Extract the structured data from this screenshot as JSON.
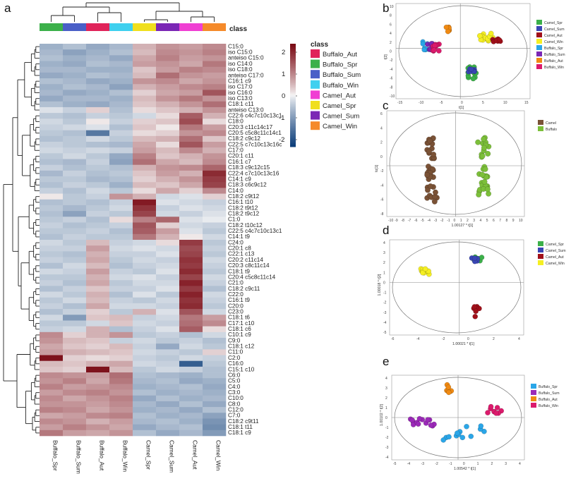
{
  "panel_labels": {
    "a": "a",
    "b": "b",
    "c": "c",
    "d": "d",
    "e": "e"
  },
  "heatmap": {
    "columns": [
      "Buffalo_Spr",
      "Buffalo_Sum",
      "Buffalo_Aut",
      "Buffalo_Win",
      "Camel_Spr",
      "Camel_Sum",
      "Camel_Aut",
      "Camel_Win"
    ],
    "class_colors": [
      "#3cb04a",
      "#4a5fc7",
      "#e0245a",
      "#3fd0ef",
      "#f0df1e",
      "#7b27b5",
      "#f03fd3",
      "#f58a2a"
    ],
    "class_header": "class",
    "rows": [
      "C15:0",
      "iso C15:0",
      "anteiso C15:0",
      "iso C14:0",
      "iso C18:0",
      "anteiso C17:0",
      "C16:1 c9",
      "iso C17:0",
      "iso C16:0",
      "iso C13:0",
      "C18:1 c11",
      "anteiso C13:0",
      "C22:6 c4c7c10c13c1",
      "C18:0",
      "C20:3 c11c14c17",
      "C20:5 c5c8c11c14c1",
      "C18:2 c9c12",
      "C22:5 c7c10c13c16c",
      "C17:0",
      "C20:1 c11",
      "C16:1 c7",
      "C18:3 c9c12c15",
      "C22:4 c7c10c13c16",
      "C14:1 c9",
      "C18:3 c6c9c12",
      "C14:0",
      "C18:2 c9t12",
      "C16:1 t10",
      "C18:2 t9t12",
      "C18:2 t9c12",
      "C1:0",
      "C18:2 t10c12",
      "C22:5 c4c7c10c13c1",
      "C14:1 t9",
      "C24:0",
      "C20:1 c8",
      "C22:1 c13",
      "C20:2 c11c14",
      "C20:3 c8c11c14",
      "C18:1 t9",
      "C20:4 c5c8c11c14",
      "C21:0",
      "C18:2 c9c11",
      "C22:0",
      "C16:1 t9",
      "C20:0",
      "C23:0",
      "C18:1 t6",
      "C17:1 c10",
      "C18:1 c6",
      "C10:1 c9",
      "C9:0",
      "C18:1 c12",
      "C11:0",
      "C2:0",
      "C16:0",
      "C15:1 c10",
      "C6:0",
      "C5:0",
      "C4:0",
      "C3:0",
      "C10:0",
      "C8:0",
      "C12:0",
      "C7:0",
      "C18:2 c9t11",
      "C18:1 t11",
      "C18:1 c9"
    ],
    "values": [
      [
        -0.8,
        -0.6,
        -0.9,
        -0.7,
        0.6,
        0.9,
        0.8,
        1.0
      ],
      [
        -0.7,
        -1.0,
        -0.8,
        -0.6,
        0.5,
        1.0,
        0.9,
        1.1
      ],
      [
        -0.6,
        -0.8,
        -0.7,
        -0.9,
        0.7,
        1.1,
        0.8,
        0.9
      ],
      [
        -0.8,
        -0.9,
        -0.6,
        -0.7,
        0.8,
        0.9,
        0.7,
        1.2
      ],
      [
        -0.7,
        -0.7,
        -0.8,
        -0.8,
        0.4,
        0.8,
        1.1,
        1.0
      ],
      [
        -0.9,
        -0.8,
        -0.6,
        -0.7,
        0.5,
        1.3,
        0.9,
        0.8
      ],
      [
        -0.6,
        -0.7,
        -0.9,
        -0.8,
        0.9,
        1.0,
        0.7,
        0.9
      ],
      [
        -0.8,
        -0.6,
        -0.7,
        -1.0,
        0.6,
        0.8,
        1.0,
        1.1
      ],
      [
        -0.7,
        -0.9,
        -0.8,
        -0.6,
        0.3,
        0.7,
        0.8,
        1.6
      ],
      [
        -0.9,
        -0.7,
        -0.7,
        -0.8,
        0.5,
        0.9,
        1.2,
        0.9
      ],
      [
        -0.6,
        -0.8,
        -0.9,
        -0.7,
        0.4,
        0.6,
        0.9,
        1.3
      ],
      [
        -0.2,
        -0.4,
        0.3,
        -0.6,
        0.2,
        0.4,
        0.6,
        0.9
      ],
      [
        -0.5,
        -0.6,
        -0.4,
        -0.5,
        -0.3,
        0.2,
        1.5,
        0.6
      ],
      [
        -0.3,
        -0.5,
        0.1,
        -0.4,
        0.3,
        0.4,
        1.7,
        0.2
      ],
      [
        -0.4,
        -0.3,
        -0.2,
        -0.6,
        0.4,
        0.1,
        1.2,
        0.8
      ],
      [
        -0.5,
        -0.6,
        -1.6,
        -0.4,
        0.2,
        0.3,
        0.9,
        1.0
      ],
      [
        -0.6,
        -0.5,
        -0.3,
        -0.5,
        0.5,
        0.6,
        1.3,
        0.4
      ],
      [
        -0.4,
        -0.5,
        -0.6,
        -0.7,
        0.7,
        0.2,
        1.6,
        0.8
      ],
      [
        -0.3,
        -0.4,
        -0.3,
        -0.4,
        0.8,
        0.5,
        1.0,
        0.6
      ],
      [
        -0.5,
        -0.3,
        -0.5,
        -0.9,
        1.1,
        0.4,
        0.6,
        0.9
      ],
      [
        -0.6,
        -0.7,
        -0.4,
        -1.0,
        1.3,
        0.7,
        0.5,
        1.0
      ],
      [
        -0.4,
        -0.6,
        -0.5,
        -0.6,
        0.6,
        0.9,
        1.0,
        1.4
      ],
      [
        -0.7,
        -0.4,
        -0.6,
        -0.5,
        0.4,
        0.8,
        0.6,
        2.1
      ],
      [
        -0.5,
        -0.5,
        -0.7,
        -0.6,
        0.3,
        0.6,
        0.9,
        1.9
      ],
      [
        -0.6,
        -0.4,
        -0.5,
        -0.8,
        0.5,
        0.4,
        0.7,
        1.8
      ],
      [
        -0.4,
        -0.6,
        -0.3,
        -0.5,
        0.2,
        0.7,
        0.3,
        1.0
      ],
      [
        0.1,
        -0.5,
        -0.4,
        0.9,
        0.6,
        -0.3,
        -0.2,
        0.3
      ],
      [
        -0.6,
        -0.5,
        -0.6,
        -0.4,
        2.3,
        -0.2,
        -0.3,
        -0.4
      ],
      [
        -0.5,
        -0.7,
        -0.5,
        -0.3,
        2.0,
        -0.4,
        -0.2,
        -0.3
      ],
      [
        -0.6,
        -1.0,
        -0.4,
        -0.5,
        1.8,
        -0.3,
        -0.4,
        -0.2
      ],
      [
        -0.5,
        -0.4,
        -0.6,
        0.2,
        1.1,
        1.4,
        -0.2,
        -0.1
      ],
      [
        -0.4,
        -0.6,
        -0.5,
        -0.4,
        1.6,
        0.3,
        -0.3,
        -0.4
      ],
      [
        -0.5,
        -0.5,
        -0.4,
        -0.6,
        1.5,
        0.8,
        -0.2,
        -0.5
      ],
      [
        -0.6,
        -0.4,
        -0.5,
        -0.5,
        1.2,
        0.6,
        0.1,
        -0.3
      ],
      [
        -0.3,
        -0.5,
        0.5,
        -0.4,
        -0.3,
        0.2,
        1.9,
        -0.5
      ],
      [
        -0.4,
        -0.4,
        0.8,
        -0.3,
        -0.2,
        -0.3,
        1.7,
        -0.4
      ],
      [
        -0.5,
        -0.6,
        0.6,
        -0.4,
        -0.4,
        -0.2,
        1.8,
        -0.5
      ],
      [
        -0.4,
        -0.5,
        0.7,
        -0.5,
        -0.3,
        -0.4,
        2.0,
        -0.3
      ],
      [
        -0.6,
        -0.3,
        0.5,
        -0.6,
        -0.4,
        -0.3,
        1.9,
        -0.4
      ],
      [
        -0.3,
        -0.4,
        0.8,
        -0.4,
        -0.5,
        -0.2,
        2.1,
        -0.5
      ],
      [
        -0.5,
        -0.5,
        0.6,
        -0.3,
        -0.2,
        -0.4,
        1.8,
        -0.3
      ],
      [
        -0.4,
        -0.6,
        0.7,
        -0.5,
        -0.3,
        -0.3,
        2.2,
        -0.4
      ],
      [
        -0.6,
        -0.4,
        0.4,
        -0.4,
        -0.4,
        -0.2,
        1.9,
        -0.6
      ],
      [
        -0.3,
        -0.5,
        0.6,
        -0.6,
        -0.2,
        -0.5,
        2.2,
        -0.3
      ],
      [
        -0.5,
        -0.3,
        0.5,
        -0.4,
        -0.5,
        -0.3,
        2.0,
        -0.4
      ],
      [
        -0.4,
        -0.6,
        0.7,
        -0.3,
        -0.3,
        -0.4,
        2.1,
        -0.5
      ],
      [
        -0.6,
        -0.4,
        0.3,
        -0.5,
        0.6,
        -0.2,
        1.6,
        -0.3
      ],
      [
        -0.3,
        -1.1,
        0.4,
        0.5,
        -0.4,
        -0.3,
        1.2,
        0.8
      ],
      [
        -0.5,
        -0.5,
        -0.3,
        0.4,
        -0.3,
        -0.4,
        1.3,
        1.0
      ],
      [
        -0.4,
        -0.3,
        0.6,
        -0.6,
        -0.4,
        -0.2,
        1.5,
        0.2
      ],
      [
        1.0,
        0.3,
        0.6,
        0.9,
        -0.5,
        -0.4,
        -0.6,
        -0.3
      ],
      [
        0.9,
        0.5,
        0.4,
        -0.4,
        -0.3,
        -0.5,
        -0.4,
        -0.6
      ],
      [
        0.7,
        0.4,
        0.3,
        0.5,
        -0.4,
        -0.9,
        -0.3,
        -0.5
      ],
      [
        0.8,
        0.6,
        0.5,
        0.4,
        -0.3,
        -0.4,
        -0.5,
        0.3
      ],
      [
        2.4,
        0.3,
        0.2,
        0.3,
        -0.4,
        -0.5,
        -0.3,
        -0.4
      ],
      [
        0.5,
        0.4,
        0.6,
        0.7,
        -0.3,
        -0.4,
        -2.0,
        -0.5
      ],
      [
        0.4,
        0.3,
        2.4,
        0.5,
        -0.5,
        -0.3,
        -0.4,
        -0.6
      ],
      [
        1.0,
        0.9,
        0.8,
        1.3,
        -0.6,
        -0.7,
        -0.8,
        -0.6
      ],
      [
        0.9,
        1.1,
        0.7,
        1.2,
        -0.7,
        -0.6,
        -0.9,
        -0.8
      ],
      [
        1.1,
        0.8,
        0.9,
        1.0,
        -0.8,
        -0.7,
        -0.6,
        -0.9
      ],
      [
        0.8,
        1.0,
        1.1,
        0.9,
        -0.6,
        -0.8,
        -0.7,
        -0.8
      ],
      [
        1.0,
        0.7,
        0.9,
        1.1,
        -0.9,
        -0.6,
        -0.8,
        -0.7
      ],
      [
        0.9,
        0.9,
        0.8,
        1.0,
        -0.7,
        -0.9,
        -0.6,
        -0.9
      ],
      [
        1.1,
        1.0,
        0.7,
        0.9,
        -0.8,
        -0.7,
        -0.9,
        -0.6
      ],
      [
        0.7,
        0.8,
        1.0,
        1.1,
        -0.6,
        -0.8,
        -0.7,
        -1.0
      ],
      [
        1.0,
        0.9,
        0.6,
        0.8,
        -0.7,
        -0.6,
        -0.8,
        -1.2
      ],
      [
        0.8,
        1.1,
        0.9,
        0.7,
        -0.9,
        -0.7,
        -0.6,
        -1.3
      ],
      [
        1.2,
        0.8,
        0.7,
        0.9,
        -0.6,
        -0.9,
        -0.7,
        -1.1
      ]
    ],
    "colorbar": {
      "ticks": [
        "2",
        "1",
        "0",
        "-1",
        "-2"
      ],
      "colors": [
        "#7a0a14",
        "#f7f7f7",
        "#0d3e7a"
      ]
    },
    "legend": {
      "title": "class",
      "items": [
        {
          "label": "Buffalo_Aut",
          "color": "#e0245a"
        },
        {
          "label": "Buffalo_Spr",
          "color": "#3cb04a"
        },
        {
          "label": "Buffalo_Sum",
          "color": "#4a5fc7"
        },
        {
          "label": "Buffalo_Win",
          "color": "#3fd0ef"
        },
        {
          "label": "Camel_Aut",
          "color": "#f03fd3"
        },
        {
          "label": "Camel_Spr",
          "color": "#f0df1e"
        },
        {
          "label": "Camel_Sum",
          "color": "#7b27b5"
        },
        {
          "label": "Camel_Win",
          "color": "#f58a2a"
        }
      ]
    }
  },
  "scatter_b": {
    "xlabel": "t[1]",
    "ylabel": "t[2]",
    "xticks": [
      "-15",
      "-10",
      "-5",
      "0",
      "5",
      "10",
      "15"
    ],
    "yticks": [
      "10",
      "8",
      "6",
      "4",
      "2",
      "0",
      "-2",
      "-4",
      "-6",
      "-8",
      "-10"
    ],
    "legend": [
      {
        "label": "Camel_Spr",
        "color": "#3cb04a"
      },
      {
        "label": "Camel_Sum",
        "color": "#3a46b5"
      },
      {
        "label": "Camel_Aut",
        "color": "#a0101a"
      },
      {
        "label": "Camel_Win",
        "color": "#f5ef22"
      },
      {
        "label": "Buffalo_Spr",
        "color": "#2aa6e8"
      },
      {
        "label": "Buffalo_Sum",
        "color": "#7b27b5"
      },
      {
        "label": "Buffalo_Aut",
        "color": "#f08a12"
      },
      {
        "label": "Buffalo_Win",
        "color": "#dc1a6c"
      }
    ]
  },
  "scatter_c": {
    "xlabel": "1.00127 * t[1]",
    "ylabel": "to[1]",
    "xticks": [
      "-10",
      "-9",
      "-8",
      "-7",
      "-6",
      "-5",
      "-4",
      "-3",
      "-2",
      "-1",
      "0",
      "1",
      "2",
      "3",
      "4",
      "5",
      "6",
      "7",
      "8",
      "9",
      "10"
    ],
    "yticks": [
      "6",
      "4",
      "2",
      "0",
      "-2",
      "-4",
      "-6",
      "-8"
    ],
    "legend": [
      {
        "label": "Camel",
        "color": "#7a5236"
      },
      {
        "label": "Buffalo",
        "color": "#7cbf3a"
      }
    ]
  },
  "scatter_d": {
    "xlabel": "1.00021 * t[1]",
    "ylabel": "1.00018 * t[2]",
    "xticks": [
      "-6",
      "-4",
      "-2",
      "0",
      "2",
      "4"
    ],
    "yticks": [
      "4",
      "3",
      "2",
      "1",
      "0",
      "-1",
      "-2",
      "-3",
      "-4",
      "-5"
    ],
    "legend": [
      {
        "label": "Camel_Spr",
        "color": "#3cb04a"
      },
      {
        "label": "Camel_Sum",
        "color": "#3a46b5"
      },
      {
        "label": "Camel_Aut",
        "color": "#a0101a"
      },
      {
        "label": "Camel_Win",
        "color": "#f5ef22"
      }
    ]
  },
  "scatter_e": {
    "xlabel": "1.00542 * t[1]",
    "ylabel": "1.00102 * t[2]",
    "xticks": [
      "-5",
      "-4",
      "-3",
      "-2",
      "-1",
      "0",
      "1",
      "2",
      "3",
      "4"
    ],
    "yticks": [
      "4",
      "3",
      "2",
      "1",
      "0",
      "-1",
      "-2",
      "-3",
      "-4"
    ],
    "legend": [
      {
        "label": "Buffalo_Spr",
        "color": "#2aa6e8"
      },
      {
        "label": "Buffalo_Sum",
        "color": "#9b2ab8"
      },
      {
        "label": "Buffalo_Aut",
        "color": "#f08a12"
      },
      {
        "label": "Buffalo_Win",
        "color": "#dc1a6c"
      }
    ]
  }
}
